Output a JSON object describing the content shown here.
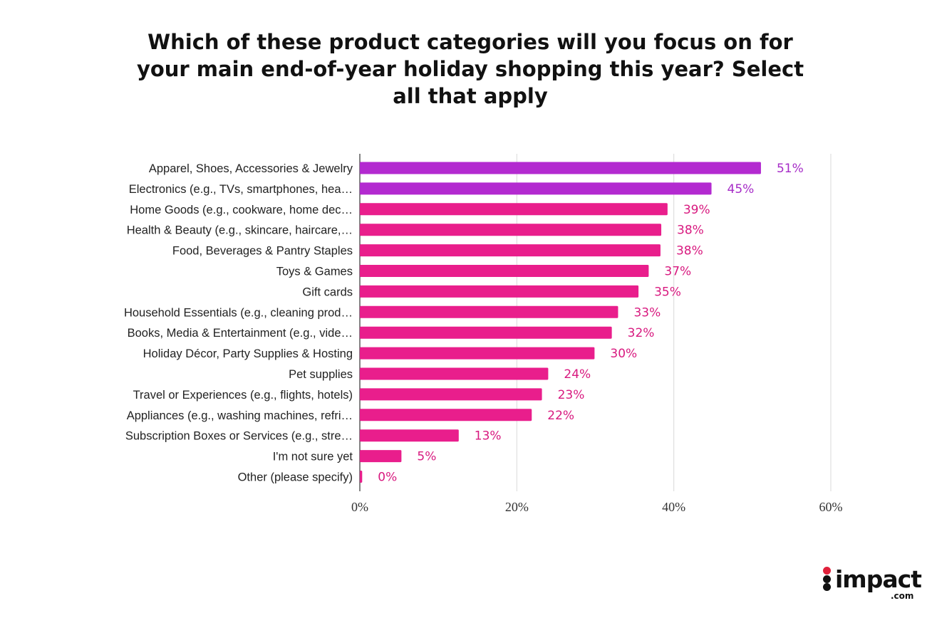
{
  "chart_data": {
    "type": "bar",
    "orientation": "horizontal",
    "title_lines": [
      "Which of these product categories will you focus on for",
      "your main end-of-year holiday shopping this year? Select",
      "all that apply"
    ],
    "categories": [
      "Apparel, Shoes, Accessories & Jewelry",
      "Electronics (e.g., TVs, smartphones, hea…",
      "Home Goods (e.g., cookware, home dec…",
      "Health & Beauty (e.g., skincare, haircare,…",
      "Food, Beverages & Pantry Staples",
      "Toys & Games",
      "Gift cards",
      "Household Essentials (e.g., cleaning prod…",
      "Books, Media & Entertainment (e.g., vide…",
      "Holiday Décor, Party Supplies & Hosting",
      "Pet supplies",
      "Travel or Experiences (e.g., flights, hotels)",
      "Appliances (e.g., washing machines, refri…",
      "Subscription Boxes or Services (e.g., stre…",
      "I'm not sure yet",
      "Other (please specify)"
    ],
    "values": [
      51.1,
      44.8,
      39.2,
      38.4,
      38.3,
      36.8,
      35.5,
      32.9,
      32.1,
      29.9,
      24.0,
      23.2,
      21.9,
      12.6,
      5.3,
      0.3
    ],
    "data_labels": [
      "51%",
      "45%",
      "39%",
      "38%",
      "38%",
      "37%",
      "35%",
      "33%",
      "32%",
      "30%",
      "24%",
      "23%",
      "22%",
      "13%",
      "5%",
      "0%"
    ],
    "highlight_count": 2,
    "xlim": [
      0,
      60
    ],
    "xticks": [
      0,
      20,
      40,
      60
    ],
    "xtick_labels": [
      "0%",
      "20%",
      "40%",
      "60%"
    ],
    "grid": true,
    "colors": {
      "highlight": "#b32ad0",
      "default": "#e91e8c",
      "highlight_label": "#a62cc7",
      "default_label": "#d8197f",
      "grid": "#d9d9d9",
      "axis": "#333333"
    }
  },
  "logo": {
    "word": "impact",
    "suffix": ".com",
    "colors": {
      "red_dot": "#e0213b",
      "black": "#111111"
    }
  }
}
